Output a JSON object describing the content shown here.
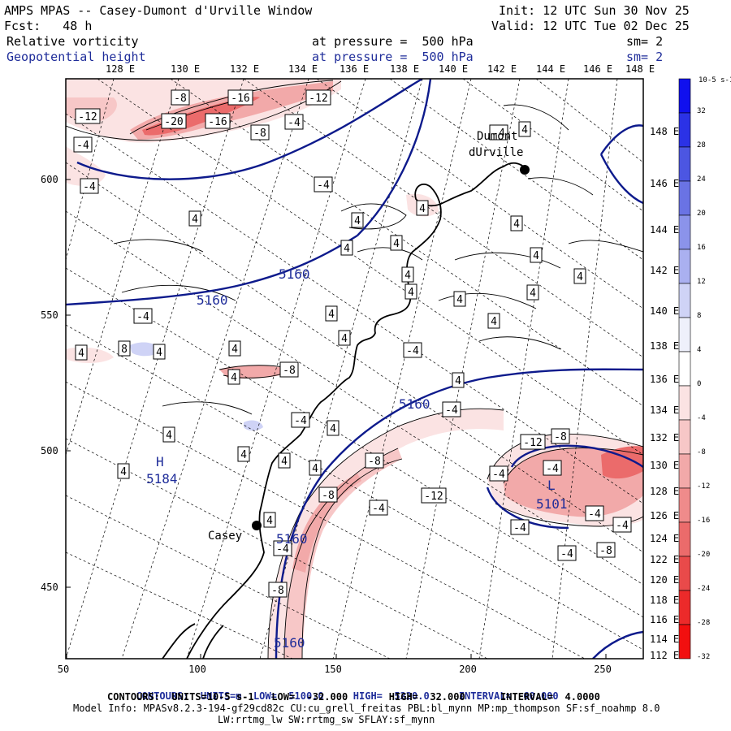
{
  "header": {
    "title": "AMPS MPAS -- Casey-Dumont d'Urville Window",
    "forecast": "Fcst:   48 h",
    "init": "Init: 12 UTC Sun 30 Nov 25",
    "valid": "Valid: 12 UTC Tue 02 Dec 25",
    "field1_name": "Relative vorticity",
    "field1_level": "at pressure =  500 hPa",
    "field1_smooth": "sm= 2",
    "field2_name": "Geopotential height",
    "field2_level": "at pressure =  500 hPa",
    "field2_smooth": "sm= 2"
  },
  "top_longitude_labels": [
    "128 E",
    "130 E",
    "132 E",
    "134 E",
    "136 E",
    "138 E",
    "140 E",
    "142 E",
    "144 E",
    "146 E",
    "148 E"
  ],
  "right_longitude_labels": [
    "148 E",
    "146 E",
    "144 E",
    "142 E",
    "140 E",
    "138 E",
    "136 E",
    "134 E",
    "132 E",
    "130 E",
    "128 E",
    "126 E",
    "124 E",
    "122 E",
    "120 E",
    "118 E",
    "116 E",
    "114 E",
    "112 E"
  ],
  "left_axis_ticks": [
    "600",
    "550",
    "500",
    "450"
  ],
  "bottom_axis_ticks": [
    "50",
    "100",
    "150",
    "200",
    "250"
  ],
  "places": [
    {
      "name": "Dumont",
      "name2": "dUrville"
    },
    {
      "name": "Casey"
    }
  ],
  "height_labels": [
    "5160",
    "5160",
    "5160",
    "5160",
    "5160",
    "5101",
    "5184"
  ],
  "highs_lows": [
    "H",
    "L"
  ],
  "vorticity_labels": [
    "-8",
    "-16",
    "-12",
    "-12",
    "-20",
    "-16",
    "-8",
    "-4",
    "-4",
    "-4",
    "-4",
    "4",
    "4",
    "4",
    "4",
    "4",
    "4",
    "4",
    "4",
    "4",
    "4",
    "4",
    "4",
    "4",
    "-4",
    "4",
    "4",
    "-4",
    "8",
    "4",
    "4",
    "4",
    "4",
    "-4",
    "4",
    "-8",
    "4",
    "-4",
    "4",
    "4",
    "4",
    "4",
    "-8",
    "-4",
    "-8",
    "-12",
    "-4",
    "-4",
    "-12",
    "-8",
    "-4",
    "-4",
    "-4",
    "-4",
    "-4",
    "-8",
    "-8",
    "-4",
    "4",
    "4",
    "4"
  ],
  "colorbar": {
    "unit": "10-5 s-1",
    "labels": [
      "32",
      "28",
      "24",
      "20",
      "16",
      "12",
      "8",
      "4",
      "0",
      "-4",
      "-8",
      "-12",
      "-16",
      "-20",
      "-24",
      "-28",
      "-32"
    ],
    "colors": [
      "#1010ee",
      "#2b32e6",
      "#4c56e2",
      "#6a73e4",
      "#8b93ea",
      "#aab0f0",
      "#cfd3f6",
      "#eef0fb",
      "#ffffff",
      "#fbe3e3",
      "#f7c7c7",
      "#f2a9a9",
      "#ef8b8b",
      "#eb6b6b",
      "#e94a4a",
      "#ec2a2a",
      "#f20f0f"
    ]
  },
  "footer": {
    "line1_a": "CONTOURS:  UNITS=m  LOW=  5100.0",
    "line1_b": "HIGH=  5220.0",
    "line1_c": "INTERVAL=  60.000",
    "line2": "CONTOURS:  UNITS=10-5 s-1   LOW=  -32.000       HIGH=  32.000      INTERVAL=  4.0000",
    "line3": "Model Info: MPASv8.2.3-194-gf29cd82c CU:cu_grell_freitas PBL:bl_mynn MP:mp_thompson SF:sf_noahmp 8.0",
    "line4": "LW:rrtmg_lw SW:rrtmg_sw SFLAY:sf_mynn"
  },
  "colors": {
    "frame": "#000000",
    "height_contour": "#0d1a8c",
    "label_blue": "#1f2d9a"
  }
}
